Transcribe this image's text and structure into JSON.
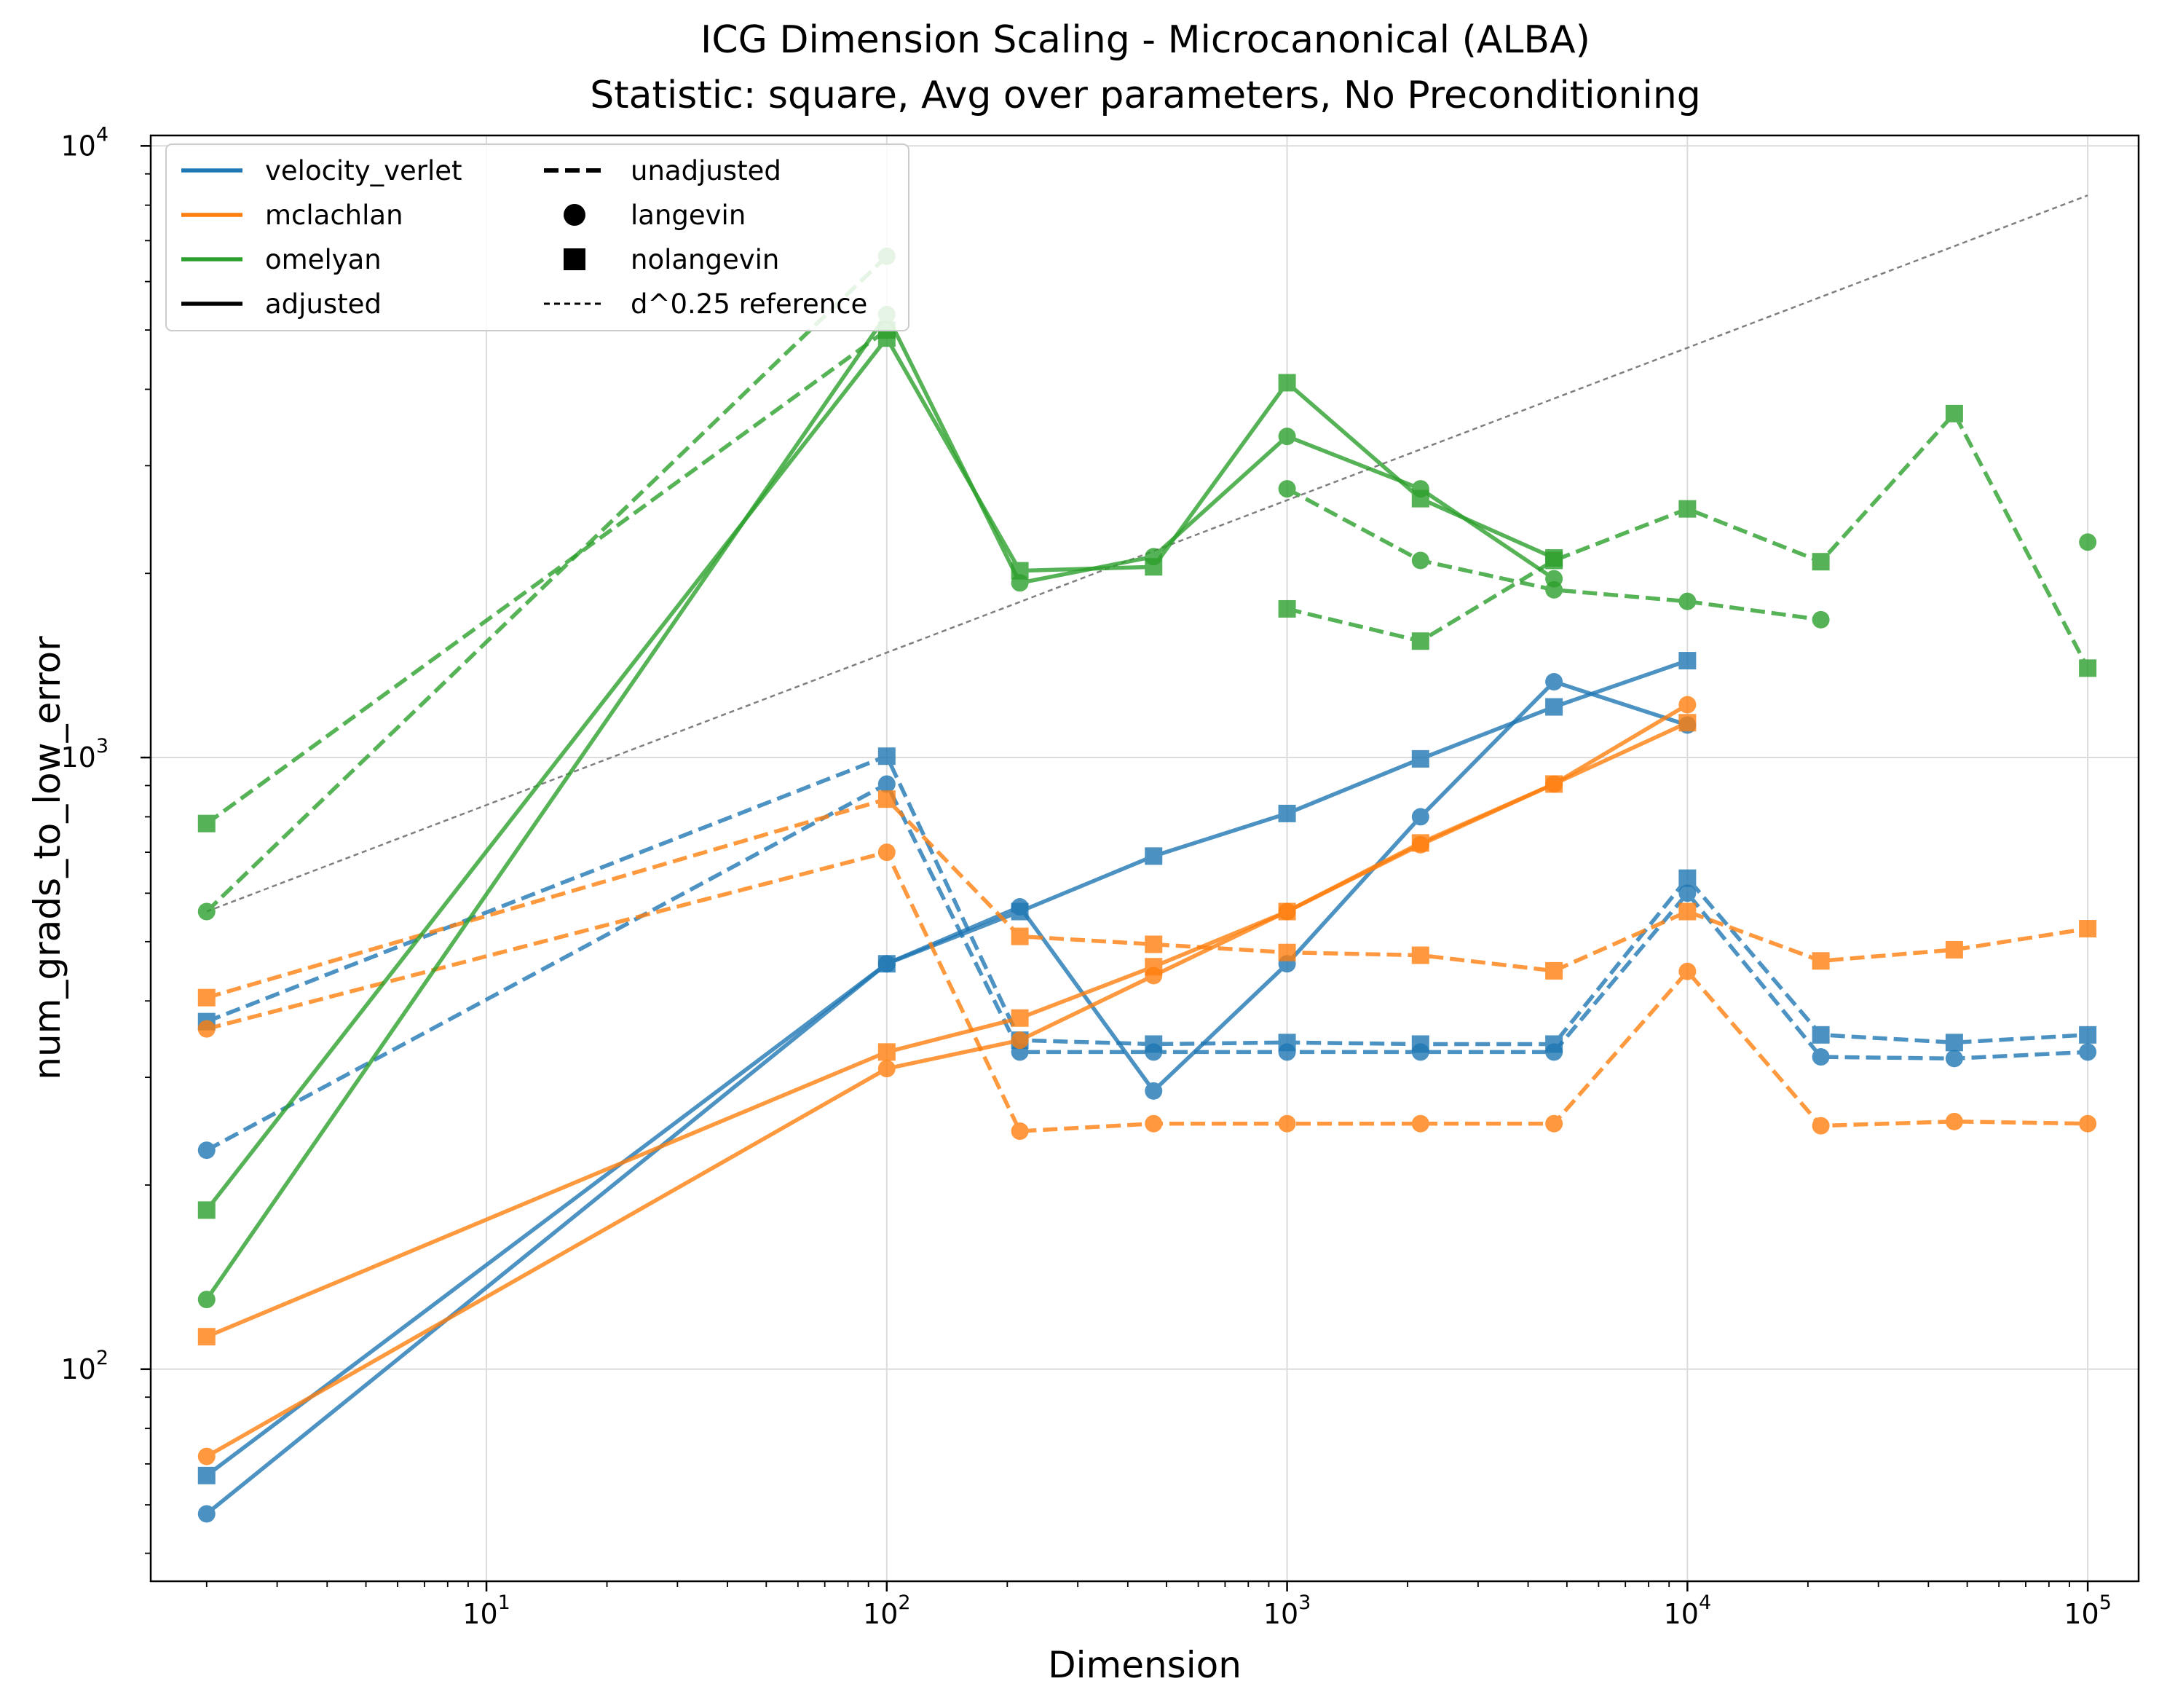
{
  "chart_data": {
    "type": "line",
    "title": "ICG Dimension Scaling - Microcanonical (ALBA)",
    "subtitle": "Statistic: square, Avg over parameters, No Preconditioning",
    "xlabel": "Dimension",
    "ylabel": "num_grads_to_low_error",
    "xscale": "log",
    "yscale": "log",
    "xlim": [
      1.45,
      134000
    ],
    "ylim": [
      45,
      10400
    ],
    "grid": true,
    "legend_position": "top-left",
    "x_ticks": [
      {
        "value": 10,
        "base": "10",
        "exp": "1"
      },
      {
        "value": 100,
        "base": "10",
        "exp": "2"
      },
      {
        "value": 1000,
        "base": "10",
        "exp": "3"
      },
      {
        "value": 10000,
        "base": "10",
        "exp": "4"
      },
      {
        "value": 100000,
        "base": "10",
        "exp": "5"
      }
    ],
    "y_ticks": [
      {
        "value": 100,
        "base": "10",
        "exp": "2"
      },
      {
        "value": 1000,
        "base": "10",
        "exp": "3"
      },
      {
        "value": 10000,
        "base": "10",
        "exp": "4"
      }
    ],
    "colors": {
      "velocity_verlet": "#1f77b4",
      "mclachlan": "#ff7f0e",
      "omelyan": "#2ca02c",
      "reference": "#7f7f7f"
    },
    "legend": {
      "col1": [
        {
          "label": "velocity_verlet",
          "kind": "line",
          "color": "#1f77b4",
          "dash": "solid"
        },
        {
          "label": "mclachlan",
          "kind": "line",
          "color": "#ff7f0e",
          "dash": "solid"
        },
        {
          "label": "omelyan",
          "kind": "line",
          "color": "#2ca02c",
          "dash": "solid"
        },
        {
          "label": "adjusted",
          "kind": "line",
          "color": "#000000",
          "dash": "solid"
        }
      ],
      "col2": [
        {
          "label": "unadjusted",
          "kind": "line",
          "color": "#000000",
          "dash": "dashed"
        },
        {
          "label": "langevin",
          "kind": "circle",
          "color": "#000000"
        },
        {
          "label": "nolangevin",
          "kind": "square",
          "color": "#000000"
        },
        {
          "label": "d^0.25 reference",
          "kind": "line",
          "color": "#000000",
          "dash": "dotted"
        }
      ]
    },
    "reference_line": {
      "label": "d^0.25 reference",
      "x": [
        2,
        100000
      ],
      "y": [
        560,
        8300
      ]
    },
    "series": [
      {
        "integrator": "velocity_verlet",
        "adjustment": "adjusted",
        "noise": "langevin",
        "color": "#1f77b4",
        "dash": "solid",
        "marker": "circle",
        "x": [
          2,
          100,
          215,
          464,
          1000,
          2154,
          4642,
          10000
        ],
        "y": [
          58,
          460,
          570,
          285,
          460,
          800,
          1330,
          1130
        ]
      },
      {
        "integrator": "velocity_verlet",
        "adjustment": "adjusted",
        "noise": "nolangevin",
        "color": "#1f77b4",
        "dash": "solid",
        "marker": "square",
        "x": [
          2,
          100,
          215,
          464,
          1000,
          2154,
          4642,
          10000
        ],
        "y": [
          67,
          460,
          560,
          690,
          810,
          995,
          1210,
          1440
        ]
      },
      {
        "integrator": "velocity_verlet",
        "adjustment": "unadjusted",
        "noise": "langevin",
        "color": "#1f77b4",
        "dash": "dashed",
        "marker": "circle",
        "x": [
          2,
          100,
          215,
          464,
          1000,
          2154,
          4642,
          10000,
          21544,
          46416,
          100000
        ],
        "y": [
          228,
          905,
          330,
          330,
          330,
          330,
          330,
          600,
          324,
          322,
          330
        ]
      },
      {
        "integrator": "velocity_verlet",
        "adjustment": "unadjusted",
        "noise": "nolangevin",
        "color": "#1f77b4",
        "dash": "dashed",
        "marker": "square",
        "x": [
          2,
          100,
          215,
          464,
          1000,
          2154,
          4642,
          10000,
          21544,
          46416,
          100000
        ],
        "y": [
          370,
          1005,
          345,
          340,
          342,
          340,
          340,
          635,
          352,
          342,
          352
        ]
      },
      {
        "integrator": "mclachlan",
        "adjustment": "adjusted",
        "noise": "langevin",
        "color": "#ff7f0e",
        "dash": "solid",
        "marker": "circle",
        "x": [
          2,
          100,
          215,
          464,
          1000,
          2154,
          4642,
          10000
        ],
        "y": [
          72,
          310,
          345,
          440,
          560,
          720,
          905,
          1220
        ]
      },
      {
        "integrator": "mclachlan",
        "adjustment": "adjusted",
        "noise": "nolangevin",
        "color": "#ff7f0e",
        "dash": "solid",
        "marker": "square",
        "x": [
          2,
          100,
          215,
          464,
          1000,
          2154,
          4642,
          10000
        ],
        "y": [
          113,
          330,
          375,
          455,
          560,
          725,
          905,
          1140
        ]
      },
      {
        "integrator": "mclachlan",
        "adjustment": "unadjusted",
        "noise": "langevin",
        "color": "#ff7f0e",
        "dash": "dashed",
        "marker": "circle",
        "x": [
          2,
          100,
          215,
          464,
          1000,
          2154,
          4642,
          10000,
          21544,
          46416,
          100000
        ],
        "y": [
          360,
          700,
          245,
          252,
          252,
          252,
          252,
          447,
          250,
          254,
          252
        ]
      },
      {
        "integrator": "mclachlan",
        "adjustment": "unadjusted",
        "noise": "nolangevin",
        "color": "#ff7f0e",
        "dash": "dashed",
        "marker": "square",
        "x": [
          2,
          100,
          215,
          464,
          1000,
          2154,
          4642,
          10000,
          21544,
          46416,
          100000
        ],
        "y": [
          405,
          855,
          510,
          495,
          480,
          475,
          448,
          560,
          465,
          485,
          525
        ]
      },
      {
        "integrator": "omelyan",
        "adjustment": "adjusted",
        "noise": "langevin",
        "color": "#2ca02c",
        "dash": "solid",
        "marker": "circle",
        "x": [
          2,
          100,
          215,
          464,
          1000,
          2154,
          4642
        ],
        "y": [
          130,
          5300,
          1930,
          2130,
          3350,
          2750,
          1960
        ]
      },
      {
        "integrator": "omelyan",
        "adjustment": "adjusted",
        "noise": "nolangevin",
        "color": "#2ca02c",
        "dash": "solid",
        "marker": "square",
        "x": [
          2,
          100,
          215,
          464,
          1000,
          2154,
          4642
        ],
        "y": [
          182,
          4850,
          2020,
          2050,
          4100,
          2650,
          2120
        ]
      },
      {
        "integrator": "omelyan",
        "adjustment": "unadjusted",
        "noise": "langevin",
        "color": "#2ca02c",
        "dash": "dashed",
        "marker": "circle",
        "x": [
          2,
          100
        ],
        "y": [
          560,
          6600
        ]
      },
      {
        "integrator": "omelyan",
        "adjustment": "unadjusted",
        "noise": "langevin",
        "color": "#2ca02c",
        "dash": "dashed",
        "marker": "circle",
        "x": [
          1000,
          2154,
          4642,
          10000,
          21544
        ],
        "y": [
          2750,
          2100,
          1880,
          1800,
          1680
        ]
      },
      {
        "integrator": "omelyan",
        "adjustment": "unadjusted",
        "noise": "langevin",
        "color": "#2ca02c",
        "dash": "dashed",
        "marker": "circle",
        "x": [
          100000
        ],
        "y": [
          2250
        ]
      },
      {
        "integrator": "omelyan",
        "adjustment": "unadjusted",
        "noise": "nolangevin",
        "color": "#2ca02c",
        "dash": "dashed",
        "marker": "square",
        "x": [
          2,
          100
        ],
        "y": [
          780,
          5000
        ]
      },
      {
        "integrator": "omelyan",
        "adjustment": "unadjusted",
        "noise": "nolangevin",
        "color": "#2ca02c",
        "dash": "dashed",
        "marker": "square",
        "x": [
          1000,
          2154,
          4642,
          10000,
          21544,
          46416,
          100000
        ],
        "y": [
          1750,
          1550,
          2100,
          2550,
          2090,
          3650,
          1400
        ]
      }
    ]
  }
}
